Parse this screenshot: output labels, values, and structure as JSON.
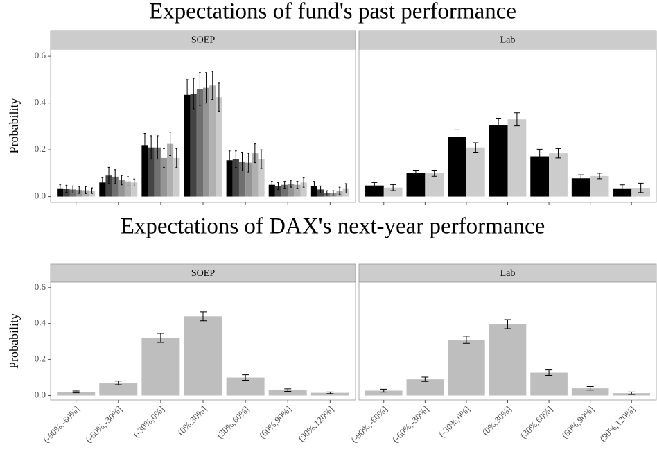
{
  "chart_data": [
    {
      "type": "bar",
      "title": "Expectations of fund's past performance",
      "panel": "SOEP",
      "ylabel": "Probability",
      "categories": [
        null,
        null,
        null,
        null,
        null,
        null,
        null
      ],
      "ylim": [
        -0.025,
        0.63
      ],
      "yticks": [
        {
          "value": 0,
          "label": "0.0"
        },
        0.2,
        0.4,
        0.6
      ],
      "series": [
        {
          "color": "#000000",
          "values": [
            0.035,
            0.06,
            0.22,
            0.435,
            0.155,
            0.05,
            0.045
          ],
          "errors": [
            0.015,
            0.02,
            0.05,
            0.065,
            0.04,
            0.015,
            0.02
          ]
        },
        {
          "color": "#444444",
          "values": [
            0.033,
            0.09,
            0.21,
            0.44,
            0.16,
            0.045,
            0.03
          ],
          "errors": [
            0.015,
            0.035,
            0.05,
            0.065,
            0.035,
            0.015,
            0.015
          ]
        },
        {
          "color": "#707070",
          "values": [
            0.03,
            0.085,
            0.21,
            0.46,
            0.15,
            0.05,
            0.015
          ],
          "errors": [
            0.015,
            0.03,
            0.05,
            0.07,
            0.04,
            0.015,
            0.01
          ]
        },
        {
          "color": "#959595",
          "values": [
            0.028,
            0.07,
            0.165,
            0.465,
            0.145,
            0.055,
            0.015
          ],
          "errors": [
            0.015,
            0.02,
            0.04,
            0.065,
            0.04,
            0.015,
            0.01
          ]
        },
        {
          "color": "#b0b0b0",
          "values": [
            0.027,
            0.065,
            0.225,
            0.475,
            0.185,
            0.05,
            0.025
          ],
          "errors": [
            0.015,
            0.02,
            0.05,
            0.06,
            0.04,
            0.015,
            0.015
          ]
        },
        {
          "color": "#cccccc",
          "values": [
            0.025,
            0.06,
            0.165,
            0.425,
            0.16,
            0.06,
            0.035
          ],
          "errors": [
            0.012,
            0.015,
            0.04,
            0.06,
            0.04,
            0.02,
            0.02
          ]
        }
      ]
    },
    {
      "type": "bar",
      "panel": "Lab",
      "categories": [
        null,
        null,
        null,
        null,
        null,
        null,
        null
      ],
      "series": [
        {
          "color": "#000000",
          "values": [
            0.047,
            0.1,
            0.255,
            0.305,
            0.172,
            0.078,
            0.035
          ],
          "errors": [
            0.013,
            0.013,
            0.03,
            0.03,
            0.03,
            0.015,
            0.015
          ]
        },
        {
          "color": "#cccccc",
          "values": [
            0.038,
            0.1,
            0.21,
            0.33,
            0.185,
            0.088,
            0.037
          ],
          "errors": [
            0.013,
            0.013,
            0.02,
            0.028,
            0.02,
            0.012,
            0.02
          ]
        }
      ]
    },
    {
      "type": "bar",
      "title": "Expectations of DAX's next-year performance",
      "panel": "SOEP",
      "ylabel": "Probability",
      "categories": [
        "(-90%,-60%]",
        "(-60%,-30%]",
        "(-30%,0%]",
        "(0%,30%]",
        "(30%,60%]",
        "(60%,90%]",
        "(90%,120%]"
      ],
      "ylim": [
        -0.025,
        0.63
      ],
      "yticks": [
        {
          "value": 0,
          "label": "0.0"
        },
        0.2,
        0.4,
        0.6
      ],
      "series": [
        {
          "color": "#bebebe",
          "values": [
            0.02,
            0.07,
            0.32,
            0.44,
            0.1,
            0.03,
            0.015
          ],
          "errors": [
            0.005,
            0.01,
            0.025,
            0.025,
            0.015,
            0.007,
            0.005
          ]
        }
      ]
    },
    {
      "type": "bar",
      "panel": "Lab",
      "categories": [
        "(-90%,-60%]",
        "(-60%,-30%]",
        "(-30%,0%]",
        "(0%,30%]",
        "(30%,60%]",
        "(60%,90%]",
        "(90%,120%]"
      ],
      "series": [
        {
          "color": "#bebebe",
          "values": [
            0.027,
            0.09,
            0.31,
            0.397,
            0.127,
            0.04,
            0.013
          ],
          "errors": [
            0.008,
            0.012,
            0.02,
            0.025,
            0.015,
            0.01,
            0.007
          ]
        }
      ]
    }
  ]
}
